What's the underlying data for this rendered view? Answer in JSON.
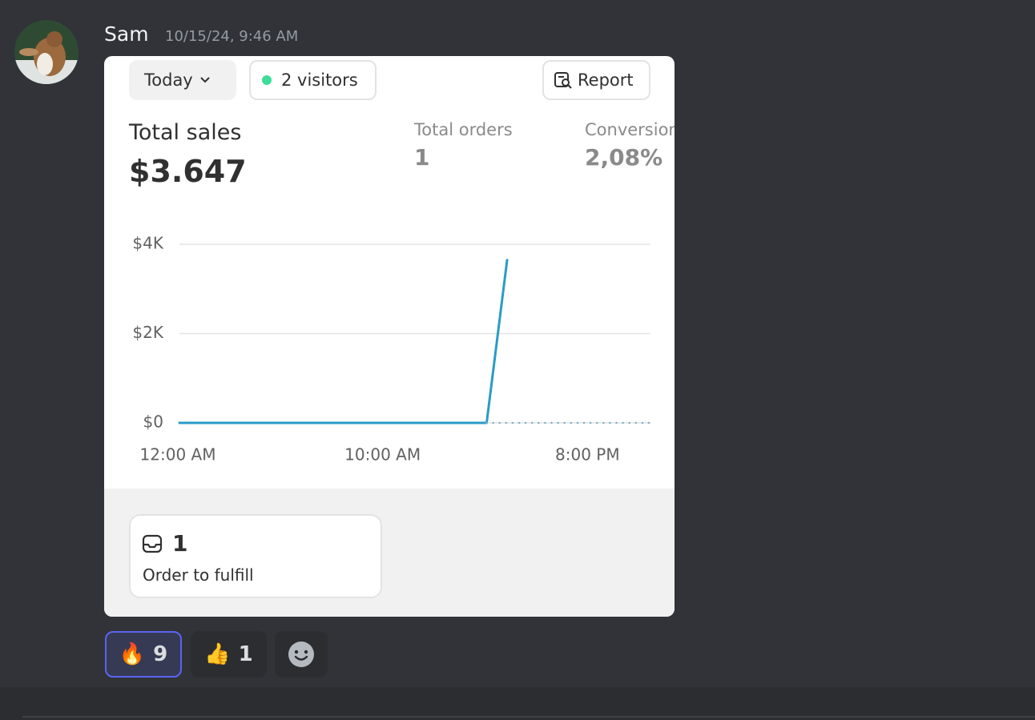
{
  "message": {
    "author": "Sam",
    "timestamp": "10/15/24, 9:46 AM"
  },
  "card": {
    "period": "Today",
    "visitors": "2 visitors",
    "report": "Report",
    "metrics": [
      {
        "label": "Total sales",
        "value": "$3.647"
      },
      {
        "label": "Total orders",
        "value": "1"
      },
      {
        "label": "Conversion",
        "value": "2,08%"
      }
    ],
    "footer": {
      "count": "1",
      "label": "Order to fulfill"
    }
  },
  "chart_data": {
    "type": "line",
    "x": [
      0,
      1,
      2,
      3,
      4,
      5,
      6,
      7,
      8,
      9,
      10,
      11,
      12,
      13,
      14,
      15,
      16,
      17,
      18,
      19,
      20,
      21,
      22,
      23
    ],
    "series": [
      {
        "color": "#2a9bc6",
        "style": "solid",
        "values": [
          0,
          0,
          0,
          0,
          0,
          0,
          0,
          0,
          0,
          0,
          0,
          0,
          0,
          0,
          0,
          0,
          3647,
          null,
          null,
          null,
          null,
          null,
          null,
          null
        ]
      },
      {
        "color": "#7fb3c9",
        "style": "dotted",
        "values": [
          null,
          null,
          null,
          null,
          null,
          null,
          null,
          null,
          null,
          null,
          null,
          null,
          null,
          null,
          null,
          0,
          0,
          0,
          0,
          0,
          0,
          0,
          0,
          0
        ]
      }
    ],
    "xlim": [
      0,
      23
    ],
    "ylim": [
      0,
      4000
    ],
    "xticks": [
      {
        "value": 0,
        "label": "12:00 AM"
      },
      {
        "value": 10,
        "label": "10:00 AM"
      },
      {
        "value": 20,
        "label": "8:00 PM"
      }
    ],
    "yticks": [
      {
        "value": 0,
        "label": "$0"
      },
      {
        "value": 2000,
        "label": "$2K"
      },
      {
        "value": 4000,
        "label": "$4K"
      }
    ],
    "grid": true
  },
  "reactions": [
    {
      "emoji": "🔥",
      "count": "9"
    },
    {
      "emoji": "👍",
      "count": "1"
    }
  ]
}
